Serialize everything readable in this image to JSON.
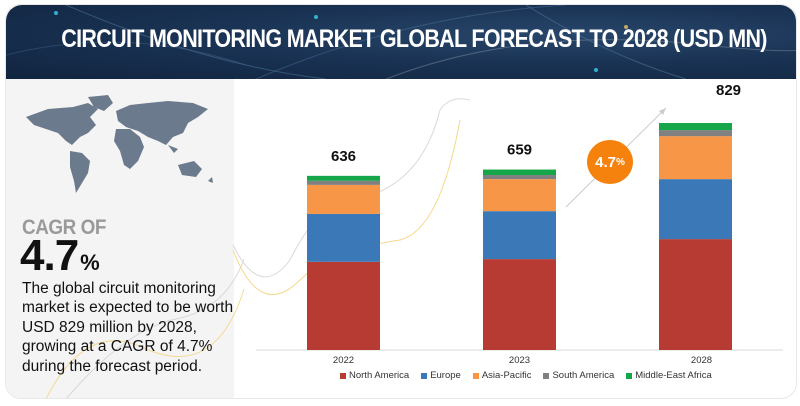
{
  "header": {
    "title": "CIRCUIT MONITORING MARKET GLOBAL FORECAST TO 2028 (USD MN)"
  },
  "left_panel": {
    "map_icon": "world-map",
    "cagr_label": "CAGR OF",
    "cagr_value": "4.7",
    "cagr_unit": "%",
    "description": "The global circuit monitoring market is expected to be worth USD 829 million by 2028, growing at a CAGR of 4.7% during the forecast period."
  },
  "cagr_bubble": {
    "value": "4.7",
    "unit": "%"
  },
  "colors": {
    "North America": "#b83b33",
    "Europe": "#3a78b8",
    "Asia-Pacific": "#f79646",
    "South America": "#808080",
    "Middle-East Africa": "#16a64a",
    "header_bg": "#1a3354",
    "bubble": "#f5820d"
  },
  "chart_data": {
    "type": "bar",
    "stacked": true,
    "title": "CIRCUIT MONITORING MARKET GLOBAL FORECAST TO 2028 (USD MN)",
    "xlabel": "",
    "ylabel": "",
    "categories": [
      "2022",
      "2023",
      "2028"
    ],
    "totals": [
      636,
      659,
      829
    ],
    "series": [
      {
        "name": "North America",
        "values": [
          322,
          332,
          405
        ]
      },
      {
        "name": "Europe",
        "values": [
          175,
          175,
          219
        ]
      },
      {
        "name": "Asia-Pacific",
        "values": [
          106,
          117,
          157
        ]
      },
      {
        "name": "South America",
        "values": [
          15,
          15,
          22
        ]
      },
      {
        "name": "Middle-East Africa",
        "values": [
          18,
          20,
          26
        ]
      }
    ],
    "ylim": [
      0,
      829
    ],
    "grid": false,
    "legend_position": "bottom",
    "annotations": [
      "4.7%"
    ]
  }
}
